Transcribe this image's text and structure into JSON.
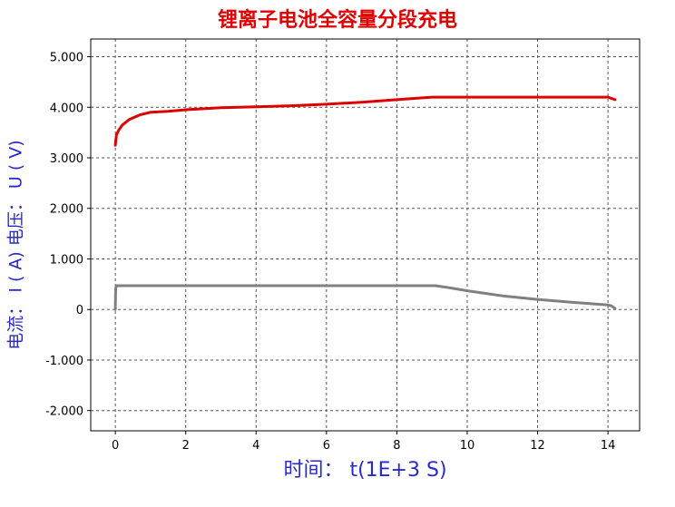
{
  "chart_data": {
    "type": "line",
    "title": "锂离子电池全容量分段充电",
    "xlabel": "时间：  t(1E+3 S)",
    "ylabel": "电流：  I ( A)     电压：  U ( V)",
    "xlim": [
      -0.7,
      14.9
    ],
    "ylim": [
      -2.4,
      5.35
    ],
    "x_ticks": [
      0,
      2,
      4,
      6,
      8,
      10,
      12,
      14
    ],
    "x_tick_labels": [
      "0",
      "2",
      "4",
      "6",
      "8",
      "10",
      "12",
      "14"
    ],
    "y_ticks": [
      5,
      4,
      3,
      2,
      1,
      0,
      -1,
      -2
    ],
    "y_tick_labels": [
      "5.000",
      "4.000",
      "3.000",
      "2.000",
      "1.000",
      "0",
      "-1.000",
      "-2.000"
    ],
    "grid": true,
    "colors": {
      "title": "#e00000",
      "axis_label": "#2a2acc",
      "voltage": "#dd0000",
      "current": "#808080"
    },
    "series": [
      {
        "x": [
          0,
          0.03,
          0.1,
          0.2,
          0.4,
          0.7,
          1.0,
          1.5,
          2,
          3,
          4,
          5,
          6,
          7,
          8,
          9,
          10,
          11,
          12,
          13,
          14,
          14.2
        ],
        "values": [
          3.25,
          3.45,
          3.55,
          3.65,
          3.76,
          3.85,
          3.9,
          3.92,
          3.95,
          3.99,
          4.01,
          4.03,
          4.06,
          4.1,
          4.15,
          4.2,
          4.2,
          4.2,
          4.2,
          4.2,
          4.2,
          4.15
        ]
      },
      {
        "x": [
          0,
          0.01,
          0.04,
          1,
          3,
          5,
          7,
          8.5,
          9.1,
          9.5,
          10,
          10.5,
          11,
          12,
          13,
          14,
          14.1,
          14.2
        ],
        "values": [
          0,
          0.42,
          0.47,
          0.47,
          0.47,
          0.47,
          0.47,
          0.47,
          0.47,
          0.43,
          0.37,
          0.32,
          0.27,
          0.2,
          0.14,
          0.09,
          0.07,
          0.02
        ]
      }
    ]
  }
}
